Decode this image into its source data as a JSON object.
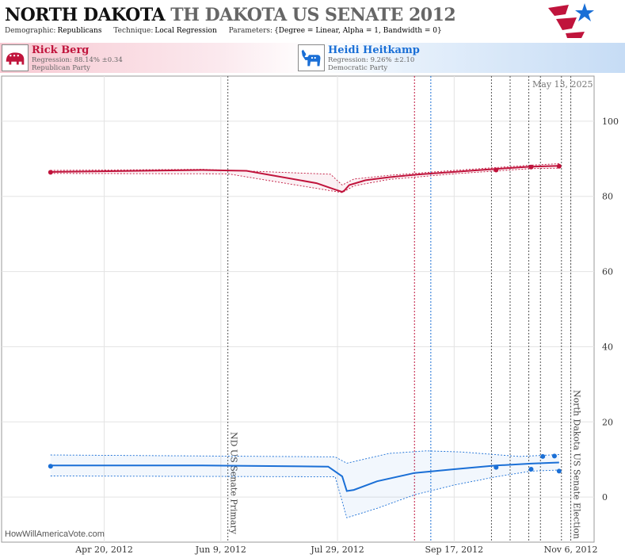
{
  "header": {
    "state": "NORTH DAKOTA",
    "race": "TH DAKOTA US SENATE 2012",
    "demographic_label": "Demographic:",
    "demographic_value": "Republicans",
    "technique_label": "Technique:",
    "technique_value": "Local Regression",
    "parameters_label": "Parameters:",
    "parameters_value": "{Degree = Linear, Alpha = 1, Bandwidth = 0}"
  },
  "candidates": {
    "rep": {
      "name": "Rick Berg",
      "regression": "Regression: 88.14% ±0.34",
      "party": "Republican Party",
      "color": "#c0143c"
    },
    "dem": {
      "name": "Heidi Heitkamp",
      "regression": "Regression: 9.26% ±2.10",
      "party": "Democratic Party",
      "color": "#1a6fd6"
    }
  },
  "date_stamp": "May 13, 2025",
  "watermark": "HowWillAmericaVote.com",
  "chart_data": {
    "type": "line",
    "title": "",
    "xlabel": "",
    "ylabel": "",
    "x_ticks": [
      {
        "date": "2012-04-20",
        "label": "Apr 20, 2012"
      },
      {
        "date": "2012-06-09",
        "label": "Jun 9, 2012"
      },
      {
        "date": "2012-07-29",
        "label": "Jul 29, 2012"
      },
      {
        "date": "2012-09-17",
        "label": "Sep 17, 2012"
      },
      {
        "date": "2012-11-06",
        "label": "Nov 6, 2012"
      }
    ],
    "xlim": [
      "2012-03-07",
      "2012-11-16"
    ],
    "ylim": [
      -12,
      112
    ],
    "y_ticks": [
      0,
      20,
      40,
      60,
      80,
      100
    ],
    "grid": true,
    "events": [
      {
        "date": "2012-06-12",
        "label": "ND US Senate Primary",
        "color": "#555555"
      },
      {
        "date": "2012-08-31",
        "label": "",
        "color": "#c0143c"
      },
      {
        "date": "2012-09-07",
        "label": "",
        "color": "#1a6fd6"
      },
      {
        "date": "2012-10-03",
        "label": "",
        "color": "#555555"
      },
      {
        "date": "2012-10-11",
        "label": "",
        "color": "#555555"
      },
      {
        "date": "2012-10-19",
        "label": "",
        "color": "#555555"
      },
      {
        "date": "2012-10-24",
        "label": "",
        "color": "#555555"
      },
      {
        "date": "2012-11-02",
        "label": "",
        "color": "#555555"
      },
      {
        "date": "2012-11-06",
        "label": "North Dakota US Senate Election",
        "color": "#555555"
      }
    ],
    "series": [
      {
        "name": "Rick Berg",
        "color": "#c0143c",
        "line": [
          [
            "2012-03-28",
            86.5
          ],
          [
            "2012-06-01",
            87.0
          ],
          [
            "2012-06-20",
            86.8
          ],
          [
            "2012-07-20",
            83.5
          ],
          [
            "2012-07-28",
            81.8
          ],
          [
            "2012-07-31",
            81.2
          ],
          [
            "2012-08-01",
            81.6
          ],
          [
            "2012-08-03",
            83.0
          ],
          [
            "2012-08-10",
            84.3
          ],
          [
            "2012-08-20",
            85.1
          ],
          [
            "2012-09-01",
            85.8
          ],
          [
            "2012-09-17",
            86.5
          ],
          [
            "2012-10-05",
            87.3
          ],
          [
            "2012-10-20",
            87.9
          ],
          [
            "2012-11-01",
            88.1
          ]
        ],
        "upper": [
          [
            "2012-03-28",
            86.9
          ],
          [
            "2012-06-01",
            87.2
          ],
          [
            "2012-07-26",
            85.9
          ],
          [
            "2012-07-31",
            83.0
          ],
          [
            "2012-08-05",
            84.6
          ],
          [
            "2012-08-20",
            85.6
          ],
          [
            "2012-09-17",
            86.9
          ],
          [
            "2012-10-20",
            88.3
          ],
          [
            "2012-11-01",
            88.7
          ]
        ],
        "lower": [
          [
            "2012-03-28",
            86.1
          ],
          [
            "2012-06-12",
            86.0
          ],
          [
            "2012-07-31",
            81.0
          ],
          [
            "2012-08-05",
            82.8
          ],
          [
            "2012-08-20",
            84.5
          ],
          [
            "2012-09-17",
            86.0
          ],
          [
            "2012-10-20",
            87.4
          ],
          [
            "2012-11-01",
            87.5
          ]
        ],
        "points": [
          [
            "2012-03-28",
            86.4
          ],
          [
            "2012-10-05",
            87.0
          ],
          [
            "2012-10-20",
            87.8
          ],
          [
            "2012-11-01",
            88.0
          ]
        ]
      },
      {
        "name": "Heidi Heitkamp",
        "color": "#1a6fd6",
        "line": [
          [
            "2012-03-28",
            8.4
          ],
          [
            "2012-06-01",
            8.4
          ],
          [
            "2012-07-25",
            8.1
          ],
          [
            "2012-07-31",
            5.5
          ],
          [
            "2012-08-02",
            1.6
          ],
          [
            "2012-08-05",
            1.9
          ],
          [
            "2012-08-15",
            4.2
          ],
          [
            "2012-08-31",
            6.4
          ],
          [
            "2012-09-17",
            7.4
          ],
          [
            "2012-10-05",
            8.4
          ],
          [
            "2012-10-20",
            8.9
          ],
          [
            "2012-11-01",
            9.2
          ]
        ],
        "upper": [
          [
            "2012-03-28",
            11.2
          ],
          [
            "2012-07-28",
            10.7
          ],
          [
            "2012-08-02",
            9.0
          ],
          [
            "2012-08-20",
            11.6
          ],
          [
            "2012-09-05",
            12.3
          ],
          [
            "2012-09-20",
            12.0
          ],
          [
            "2012-10-15",
            10.8
          ],
          [
            "2012-11-01",
            11.3
          ]
        ],
        "lower": [
          [
            "2012-03-28",
            5.6
          ],
          [
            "2012-07-28",
            5.4
          ],
          [
            "2012-08-02",
            -5.5
          ],
          [
            "2012-08-15",
            -3.0
          ],
          [
            "2012-08-31",
            0.6
          ],
          [
            "2012-09-17",
            3.2
          ],
          [
            "2012-10-05",
            5.4
          ],
          [
            "2012-10-20",
            6.9
          ],
          [
            "2012-11-01",
            7.2
          ]
        ],
        "points": [
          [
            "2012-03-28",
            8.2
          ],
          [
            "2012-10-05",
            7.9
          ],
          [
            "2012-10-20",
            7.4
          ],
          [
            "2012-10-25",
            10.8
          ],
          [
            "2012-10-30",
            10.9
          ],
          [
            "2012-11-01",
            6.9
          ]
        ]
      }
    ]
  }
}
